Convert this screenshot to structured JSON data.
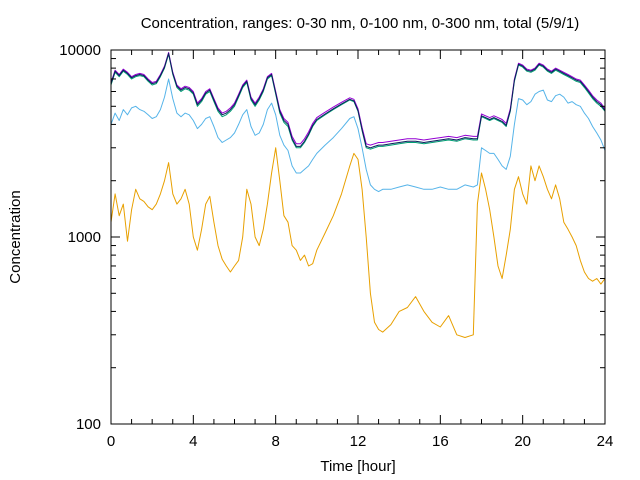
{
  "chart_data": {
    "type": "line",
    "title": "Concentration, ranges: 0-30 nm, 0-100 nm, 0-300 nm, total (5/9/1)",
    "xlabel": "Time [hour]",
    "ylabel": "Concentration",
    "xlim": [
      0,
      24
    ],
    "ylim": [
      100,
      10000
    ],
    "yscale": "log",
    "grid": false,
    "legend": "none",
    "x_ticks": [
      "0",
      "4",
      "8",
      "12",
      "16",
      "20",
      "24"
    ],
    "y_ticks": [
      "100",
      "1000",
      "10000"
    ],
    "series": [
      {
        "color": "#e8a000",
        "x": [
          0,
          0.2,
          0.4,
          0.6,
          0.8,
          1.0,
          1.2,
          1.4,
          1.6,
          1.8,
          2.0,
          2.2,
          2.4,
          2.6,
          2.8,
          3.0,
          3.2,
          3.4,
          3.6,
          3.8,
          4.0,
          4.2,
          4.4,
          4.6,
          4.8,
          5.0,
          5.2,
          5.4,
          5.6,
          5.8,
          6.0,
          6.2,
          6.4,
          6.6,
          6.8,
          7.0,
          7.2,
          7.4,
          7.6,
          7.8,
          8.0,
          8.2,
          8.4,
          8.6,
          8.8,
          9.0,
          9.2,
          9.4,
          9.6,
          9.8,
          10.0,
          10.4,
          10.8,
          11.2,
          11.6,
          11.8,
          12.0,
          12.2,
          12.4,
          12.6,
          12.8,
          13.0,
          13.2,
          13.6,
          14.0,
          14.4,
          14.8,
          15.2,
          15.6,
          16.0,
          16.4,
          16.8,
          17.2,
          17.6,
          17.8,
          18.0,
          18.2,
          18.4,
          18.6,
          18.8,
          19.0,
          19.2,
          19.4,
          19.6,
          19.8,
          20.0,
          20.2,
          20.4,
          20.6,
          20.8,
          21.0,
          21.2,
          21.4,
          21.6,
          21.8,
          22.0,
          22.2,
          22.4,
          22.6,
          22.8,
          23.0,
          23.2,
          23.4,
          23.6,
          23.8,
          24.0
        ],
        "y": [
          1200,
          1700,
          1300,
          1500,
          950,
          1400,
          1800,
          1600,
          1550,
          1450,
          1400,
          1500,
          1700,
          2000,
          2500,
          1700,
          1500,
          1600,
          1800,
          1500,
          1000,
          850,
          1100,
          1500,
          1650,
          1200,
          900,
          760,
          700,
          650,
          700,
          750,
          1000,
          1800,
          1500,
          1000,
          900,
          1100,
          1500,
          2200,
          3000,
          2000,
          1300,
          1200,
          900,
          850,
          750,
          800,
          700,
          720,
          850,
          1050,
          1300,
          1700,
          2400,
          2800,
          2600,
          1800,
          1000,
          500,
          350,
          320,
          310,
          340,
          400,
          420,
          480,
          400,
          350,
          330,
          380,
          300,
          290,
          300,
          1500,
          2200,
          1800,
          1400,
          1000,
          700,
          600,
          800,
          1100,
          1800,
          2100,
          1700,
          1500,
          2400,
          2000,
          2400,
          2100,
          1800,
          1600,
          1900,
          1600,
          1200,
          1100,
          1000,
          900,
          750,
          650,
          600,
          580,
          600,
          560,
          600
        ]
      },
      {
        "color": "#56b4e9",
        "x": [
          0,
          0.2,
          0.4,
          0.6,
          0.8,
          1.0,
          1.2,
          1.4,
          1.6,
          1.8,
          2.0,
          2.2,
          2.4,
          2.6,
          2.8,
          3.0,
          3.2,
          3.4,
          3.6,
          3.8,
          4.0,
          4.2,
          4.4,
          4.6,
          4.8,
          5.0,
          5.2,
          5.4,
          5.6,
          5.8,
          6.0,
          6.2,
          6.4,
          6.6,
          6.8,
          7.0,
          7.2,
          7.4,
          7.6,
          7.8,
          8.0,
          8.2,
          8.4,
          8.6,
          8.8,
          9.0,
          9.2,
          9.4,
          9.6,
          9.8,
          10.0,
          10.4,
          10.8,
          11.2,
          11.6,
          11.8,
          12.0,
          12.2,
          12.4,
          12.6,
          12.8,
          13.0,
          13.2,
          13.6,
          14.0,
          14.4,
          14.8,
          15.2,
          15.6,
          16.0,
          16.4,
          16.8,
          17.2,
          17.6,
          17.8,
          18.0,
          18.2,
          18.4,
          18.6,
          18.8,
          19.0,
          19.2,
          19.4,
          19.6,
          19.8,
          20.0,
          20.2,
          20.4,
          20.6,
          20.8,
          21.0,
          21.2,
          21.4,
          21.6,
          21.8,
          22.0,
          22.2,
          22.4,
          22.6,
          22.8,
          23.0,
          23.2,
          23.4,
          23.6,
          23.8,
          24.0
        ],
        "y": [
          4000,
          4600,
          4200,
          4800,
          4500,
          4900,
          5000,
          4800,
          4700,
          4500,
          4300,
          4400,
          4800,
          5600,
          7000,
          5500,
          4600,
          4400,
          4600,
          4500,
          4200,
          3800,
          4000,
          4300,
          4400,
          3900,
          3400,
          3200,
          3300,
          3400,
          3600,
          4000,
          4500,
          4800,
          3900,
          3500,
          3600,
          4000,
          4800,
          5200,
          4500,
          3500,
          3100,
          2900,
          2400,
          2200,
          2200,
          2300,
          2400,
          2600,
          2800,
          3100,
          3400,
          3800,
          4300,
          4400,
          3800,
          3000,
          2300,
          1900,
          1800,
          1750,
          1800,
          1800,
          1850,
          1900,
          1850,
          1800,
          1800,
          1850,
          1800,
          1800,
          1900,
          1850,
          1900,
          3000,
          2900,
          2800,
          2800,
          2600,
          2400,
          2300,
          2700,
          4000,
          5500,
          5400,
          5100,
          5300,
          5800,
          6000,
          6100,
          5400,
          5300,
          5700,
          5800,
          5600,
          5200,
          5300,
          5100,
          5000,
          4600,
          4300,
          3900,
          3600,
          3300,
          2900
        ]
      },
      {
        "color": "#009e73",
        "x": [
          0,
          0.2,
          0.4,
          0.6,
          0.8,
          1.0,
          1.2,
          1.4,
          1.6,
          1.8,
          2.0,
          2.2,
          2.4,
          2.6,
          2.8,
          3.0,
          3.2,
          3.4,
          3.6,
          3.8,
          4.0,
          4.2,
          4.4,
          4.6,
          4.8,
          5.0,
          5.2,
          5.4,
          5.6,
          5.8,
          6.0,
          6.2,
          6.4,
          6.6,
          6.8,
          7.0,
          7.2,
          7.4,
          7.6,
          7.8,
          8.0,
          8.2,
          8.4,
          8.6,
          8.8,
          9.0,
          9.2,
          9.4,
          9.6,
          9.8,
          10.0,
          10.4,
          10.8,
          11.2,
          11.6,
          11.8,
          12.0,
          12.2,
          12.4,
          12.6,
          12.8,
          13.0,
          13.2,
          13.6,
          14.0,
          14.4,
          14.8,
          15.2,
          15.6,
          16.0,
          16.4,
          16.8,
          17.2,
          17.6,
          17.8,
          18.0,
          18.2,
          18.4,
          18.6,
          18.8,
          19.0,
          19.2,
          19.4,
          19.6,
          19.8,
          20.0,
          20.2,
          20.4,
          20.6,
          20.8,
          21.0,
          21.2,
          21.4,
          21.6,
          21.8,
          22.0,
          22.2,
          22.4,
          22.6,
          22.8,
          23.0,
          23.2,
          23.4,
          23.6,
          23.8,
          24.0
        ],
        "y": [
          6500,
          7600,
          7200,
          7700,
          7400,
          7000,
          7200,
          7300,
          7200,
          6800,
          6500,
          6600,
          7200,
          8000,
          9500,
          7400,
          6300,
          6000,
          6200,
          6100,
          5800,
          5000,
          5300,
          5800,
          6000,
          5300,
          4700,
          4400,
          4500,
          4700,
          5000,
          5600,
          6300,
          6700,
          5400,
          5000,
          5400,
          6000,
          7000,
          7300,
          5800,
          4600,
          4100,
          3900,
          3300,
          3000,
          3000,
          3200,
          3500,
          3900,
          4200,
          4500,
          4800,
          5100,
          5400,
          5300,
          4700,
          3700,
          3000,
          2950,
          3000,
          3050,
          3050,
          3100,
          3150,
          3200,
          3200,
          3150,
          3200,
          3250,
          3300,
          3250,
          3350,
          3300,
          3300,
          4400,
          4300,
          4200,
          4300,
          4200,
          4100,
          3900,
          4700,
          6800,
          8300,
          8100,
          7700,
          7600,
          7800,
          8300,
          8100,
          7700,
          7500,
          7800,
          7600,
          7400,
          7200,
          7000,
          6800,
          6700,
          6300,
          5900,
          5500,
          5200,
          5000,
          4700
        ]
      },
      {
        "color": "#9400d3",
        "x": [
          0,
          0.2,
          0.4,
          0.6,
          0.8,
          1.0,
          1.2,
          1.4,
          1.6,
          1.8,
          2.0,
          2.2,
          2.4,
          2.6,
          2.8,
          3.0,
          3.2,
          3.4,
          3.6,
          3.8,
          4.0,
          4.2,
          4.4,
          4.6,
          4.8,
          5.0,
          5.2,
          5.4,
          5.6,
          5.8,
          6.0,
          6.2,
          6.4,
          6.6,
          6.8,
          7.0,
          7.2,
          7.4,
          7.6,
          7.8,
          8.0,
          8.2,
          8.4,
          8.6,
          8.8,
          9.0,
          9.2,
          9.4,
          9.6,
          9.8,
          10.0,
          10.4,
          10.8,
          11.2,
          11.6,
          11.8,
          12.0,
          12.2,
          12.4,
          12.6,
          12.8,
          13.0,
          13.2,
          13.6,
          14.0,
          14.4,
          14.8,
          15.2,
          15.6,
          16.0,
          16.4,
          16.8,
          17.2,
          17.6,
          17.8,
          18.0,
          18.2,
          18.4,
          18.6,
          18.8,
          19.0,
          19.2,
          19.4,
          19.6,
          19.8,
          20.0,
          20.2,
          20.4,
          20.6,
          20.8,
          21.0,
          21.2,
          21.4,
          21.6,
          21.8,
          22.0,
          22.2,
          22.4,
          22.6,
          22.8,
          23.0,
          23.2,
          23.4,
          23.6,
          23.8,
          24.0
        ],
        "y": [
          6700,
          7800,
          7400,
          7900,
          7600,
          7200,
          7400,
          7500,
          7400,
          7000,
          6700,
          6800,
          7400,
          8200,
          9700,
          7600,
          6500,
          6200,
          6400,
          6300,
          6000,
          5200,
          5500,
          6000,
          6200,
          5500,
          4900,
          4600,
          4700,
          4900,
          5200,
          5800,
          6500,
          6900,
          5600,
          5200,
          5600,
          6200,
          7200,
          7500,
          6000,
          4800,
          4300,
          4100,
          3450,
          3150,
          3150,
          3350,
          3650,
          4050,
          4350,
          4650,
          4950,
          5250,
          5550,
          5450,
          4850,
          3850,
          3150,
          3100,
          3150,
          3200,
          3200,
          3250,
          3300,
          3350,
          3350,
          3300,
          3350,
          3400,
          3450,
          3400,
          3500,
          3450,
          3450,
          4550,
          4450,
          4350,
          4450,
          4350,
          4250,
          4050,
          4850,
          7000,
          8500,
          8300,
          7900,
          7800,
          8000,
          8500,
          8300,
          7900,
          7700,
          8000,
          7800,
          7600,
          7400,
          7200,
          7000,
          6900,
          6500,
          6100,
          5700,
          5400,
          5200,
          4850
        ]
      },
      {
        "color": "#0b1f5c",
        "x": [
          0,
          0.2,
          0.4,
          0.6,
          0.8,
          1.0,
          1.2,
          1.4,
          1.6,
          1.8,
          2.0,
          2.2,
          2.4,
          2.6,
          2.8,
          3.0,
          3.2,
          3.4,
          3.6,
          3.8,
          4.0,
          4.2,
          4.4,
          4.6,
          4.8,
          5.0,
          5.2,
          5.4,
          5.6,
          5.8,
          6.0,
          6.2,
          6.4,
          6.6,
          6.8,
          7.0,
          7.2,
          7.4,
          7.6,
          7.8,
          8.0,
          8.2,
          8.4,
          8.6,
          8.8,
          9.0,
          9.2,
          9.4,
          9.6,
          9.8,
          10.0,
          10.4,
          10.8,
          11.2,
          11.6,
          11.8,
          12.0,
          12.2,
          12.4,
          12.6,
          12.8,
          13.0,
          13.2,
          13.6,
          14.0,
          14.4,
          14.8,
          15.2,
          15.6,
          16.0,
          16.4,
          16.8,
          17.2,
          17.6,
          17.8,
          18.0,
          18.2,
          18.4,
          18.6,
          18.8,
          19.0,
          19.2,
          19.4,
          19.6,
          19.8,
          20.0,
          20.2,
          20.4,
          20.6,
          20.8,
          21.0,
          21.2,
          21.4,
          21.6,
          21.8,
          22.0,
          22.2,
          22.4,
          22.6,
          22.8,
          23.0,
          23.2,
          23.4,
          23.6,
          23.8,
          24.0
        ],
        "y": [
          6600,
          7700,
          7300,
          7800,
          7500,
          7100,
          7300,
          7400,
          7300,
          6900,
          6600,
          6700,
          7300,
          8100,
          9600,
          7500,
          6400,
          6100,
          6300,
          6200,
          5900,
          5100,
          5400,
          5900,
          6100,
          5400,
          4800,
          4500,
          4600,
          4800,
          5100,
          5700,
          6400,
          6800,
          5500,
          5100,
          5500,
          6100,
          7100,
          7400,
          5900,
          4700,
          4200,
          4000,
          3350,
          3050,
          3050,
          3250,
          3550,
          3950,
          4250,
          4550,
          4850,
          5150,
          5450,
          5350,
          4750,
          3750,
          3050,
          3000,
          3050,
          3100,
          3100,
          3150,
          3200,
          3250,
          3250,
          3200,
          3250,
          3300,
          3350,
          3300,
          3400,
          3350,
          3350,
          4450,
          4350,
          4250,
          4350,
          4250,
          4150,
          3950,
          4750,
          6900,
          8400,
          8200,
          7800,
          7700,
          7900,
          8400,
          8200,
          7800,
          7600,
          7900,
          7700,
          7500,
          7300,
          7100,
          6900,
          6800,
          6400,
          6000,
          5600,
          5300,
          5100,
          4750
        ]
      }
    ]
  }
}
